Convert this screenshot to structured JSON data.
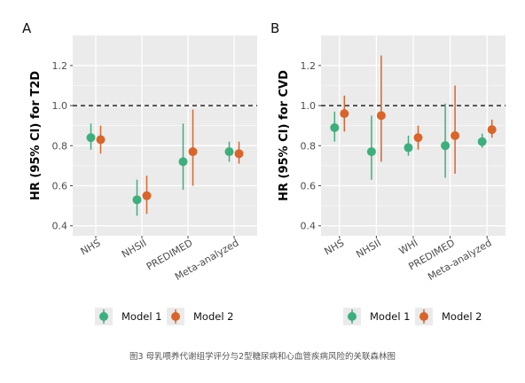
{
  "caption": "图3 母乳喂养代谢组学评分与2型糖尿病和心血管疾病风险的关联森林图",
  "colors": {
    "model1": "#3FAE7D",
    "model2": "#D8652B",
    "panel_bg": "#EBEBEB",
    "grid": "#FFFFFF"
  },
  "legend": {
    "items": [
      {
        "label": "Model 1",
        "color": "#3FAE7D"
      },
      {
        "label": "Model 2",
        "color": "#D8652B"
      }
    ]
  },
  "chart_data": [
    {
      "type": "scatter",
      "panel_label": "A",
      "title": "",
      "xlabel": "",
      "ylabel": "HR (95% CI) for T2D",
      "categories": [
        "NHS",
        "NHSII",
        "PREDIMED",
        "Meta-analyzed"
      ],
      "ylim": [
        0.35,
        1.35
      ],
      "yticks": [
        "0.4",
        "0.6",
        "0.8",
        "1.0",
        "1.2"
      ],
      "reference_line": 1.0,
      "grid": true,
      "legend_position": "bottom",
      "series": [
        {
          "name": "Model 1",
          "estimates": [
            0.84,
            0.53,
            0.72,
            0.77
          ],
          "lower": [
            0.78,
            0.45,
            0.58,
            0.72
          ],
          "upper": [
            0.91,
            0.63,
            0.91,
            0.82
          ]
        },
        {
          "name": "Model 2",
          "estimates": [
            0.83,
            0.55,
            0.77,
            0.76
          ],
          "lower": [
            0.76,
            0.46,
            0.6,
            0.71
          ],
          "upper": [
            0.9,
            0.65,
            0.98,
            0.82
          ]
        }
      ]
    },
    {
      "type": "scatter",
      "panel_label": "B",
      "title": "",
      "xlabel": "",
      "ylabel": "HR (95% CI) for CVD",
      "categories": [
        "NHS",
        "NHSII",
        "WHI",
        "PREDIMED",
        "Meta-analyzed"
      ],
      "ylim": [
        0.35,
        1.35
      ],
      "yticks": [
        "0.4",
        "0.6",
        "0.8",
        "1.0",
        "1.2"
      ],
      "reference_line": 1.0,
      "grid": true,
      "legend_position": "bottom",
      "series": [
        {
          "name": "Model 1",
          "estimates": [
            0.89,
            0.77,
            0.79,
            0.8,
            0.82
          ],
          "lower": [
            0.82,
            0.63,
            0.75,
            0.64,
            0.79
          ],
          "upper": [
            0.97,
            0.95,
            0.85,
            1.01,
            0.86
          ]
        },
        {
          "name": "Model 2",
          "estimates": [
            0.96,
            0.95,
            0.84,
            0.85,
            0.88
          ],
          "lower": [
            0.87,
            0.72,
            0.78,
            0.66,
            0.84
          ],
          "upper": [
            1.05,
            1.25,
            0.9,
            1.1,
            0.93
          ]
        }
      ]
    }
  ]
}
